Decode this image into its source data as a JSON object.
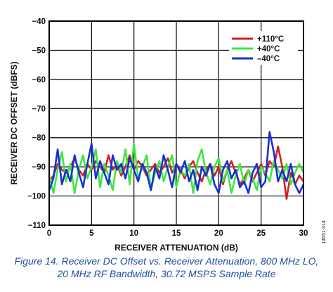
{
  "chart_data": {
    "type": "line",
    "xlabel": "RECEIVER ATTENUATION (dB)",
    "ylabel": "RECEIVER DC OFFSET (dBFS)",
    "xlim": [
      0,
      30
    ],
    "ylim": [
      -110,
      -40
    ],
    "xticks": [
      0,
      5,
      10,
      15,
      20,
      25,
      30
    ],
    "yticks": [
      -40,
      -50,
      -60,
      -70,
      -80,
      -90,
      -100,
      -110
    ],
    "grid": true,
    "legend_position": "top-right",
    "series": [
      {
        "name": "+110°C",
        "color": "#d42020",
        "x": [
          0,
          0.5,
          1,
          1.5,
          2,
          2.5,
          3,
          3.5,
          4,
          4.5,
          5,
          5.5,
          6,
          6.5,
          7,
          7.5,
          8,
          8.5,
          9,
          9.5,
          10,
          10.5,
          11,
          11.5,
          12,
          12.5,
          13,
          13.5,
          14,
          14.5,
          15,
          15.5,
          16,
          16.5,
          17,
          17.5,
          18,
          18.5,
          19,
          19.5,
          20,
          20.5,
          21,
          21.5,
          22,
          22.5,
          23,
          23.5,
          24,
          24.5,
          25,
          25.5,
          26,
          26.5,
          27,
          27.5,
          28,
          28.5,
          29,
          29.5,
          30
        ],
        "values": [
          -95,
          -93,
          -89,
          -91,
          -92,
          -90,
          -87,
          -91,
          -93,
          -89,
          -91,
          -88,
          -90,
          -92,
          -86,
          -91,
          -89,
          -93,
          -90,
          -86,
          -91,
          -88,
          -90,
          -93,
          -91,
          -89,
          -92,
          -90,
          -87,
          -92,
          -89,
          -91,
          -94,
          -90,
          -88,
          -92,
          -95,
          -91,
          -89,
          -93,
          -90,
          -96,
          -91,
          -88,
          -92,
          -96,
          -94,
          -91,
          -95,
          -92,
          -89,
          -93,
          -88,
          -90,
          -83,
          -90,
          -101,
          -92,
          -96,
          -93,
          -95
        ]
      },
      {
        "name": "+40°C",
        "color": "#3ce83c",
        "x": [
          0,
          0.5,
          1,
          1.5,
          2,
          2.5,
          3,
          3.5,
          4,
          4.5,
          5,
          5.5,
          6,
          6.5,
          7,
          7.5,
          8,
          8.5,
          9,
          9.5,
          10,
          10.5,
          11,
          11.5,
          12,
          12.5,
          13,
          13.5,
          14,
          14.5,
          15,
          15.5,
          16,
          16.5,
          17,
          17.5,
          18,
          18.5,
          19,
          19.5,
          20,
          20.5,
          21,
          21.5,
          22,
          22.5,
          23,
          23.5,
          24,
          24.5,
          25,
          25.5,
          26,
          26.5,
          27,
          27.5,
          28,
          28.5,
          29,
          29.5,
          30
        ],
        "values": [
          -93,
          -99,
          -91,
          -85,
          -95,
          -89,
          -99,
          -91,
          -86,
          -94,
          -90,
          -84,
          -97,
          -89,
          -93,
          -98,
          -88,
          -92,
          -84,
          -96,
          -82,
          -94,
          -90,
          -86,
          -98,
          -92,
          -88,
          -95,
          -90,
          -86,
          -97,
          -91,
          -93,
          -89,
          -99,
          -88,
          -84,
          -92,
          -96,
          -90,
          -87,
          -95,
          -91,
          -99,
          -93,
          -89,
          -96,
          -91,
          -94,
          -98,
          -90,
          -92,
          -95,
          -88,
          -91,
          -94,
          -89,
          -96,
          -92,
          -89,
          -92
        ]
      },
      {
        "name": "–40°C",
        "color": "#1a2fd4",
        "x": [
          0,
          0.5,
          1,
          1.5,
          2,
          2.5,
          3,
          3.5,
          4,
          4.5,
          5,
          5.5,
          6,
          6.5,
          7,
          7.5,
          8,
          8.5,
          9,
          9.5,
          10,
          10.5,
          11,
          11.5,
          12,
          12.5,
          13,
          13.5,
          14,
          14.5,
          15,
          15.5,
          16,
          16.5,
          17,
          17.5,
          18,
          18.5,
          19,
          19.5,
          20,
          20.5,
          21,
          21.5,
          22,
          22.5,
          23,
          23.5,
          24,
          24.5,
          25,
          25.5,
          26,
          26.5,
          27,
          27.5,
          28,
          28.5,
          29,
          29.5,
          30
        ],
        "values": [
          -98,
          -94,
          -84,
          -96,
          -91,
          -95,
          -86,
          -92,
          -97,
          -89,
          -82,
          -94,
          -88,
          -92,
          -96,
          -86,
          -91,
          -89,
          -94,
          -87,
          -91,
          -95,
          -89,
          -92,
          -98,
          -90,
          -94,
          -86,
          -91,
          -97,
          -89,
          -92,
          -88,
          -95,
          -91,
          -98,
          -90,
          -93,
          -89,
          -96,
          -99,
          -91,
          -88,
          -94,
          -91,
          -97,
          -95,
          -99,
          -92,
          -89,
          -97,
          -95,
          -78,
          -85,
          -95,
          -91,
          -95,
          -89,
          -96,
          -99,
          -96
        ]
      }
    ]
  },
  "figure_id": "14651-314",
  "caption": {
    "line1": "Figure 14. Receiver DC Offset vs. Receiver Attenuation, 800 MHz LO,",
    "line2": "20 MHz RF Bandwidth, 30.72 MSPS Sample Rate"
  }
}
